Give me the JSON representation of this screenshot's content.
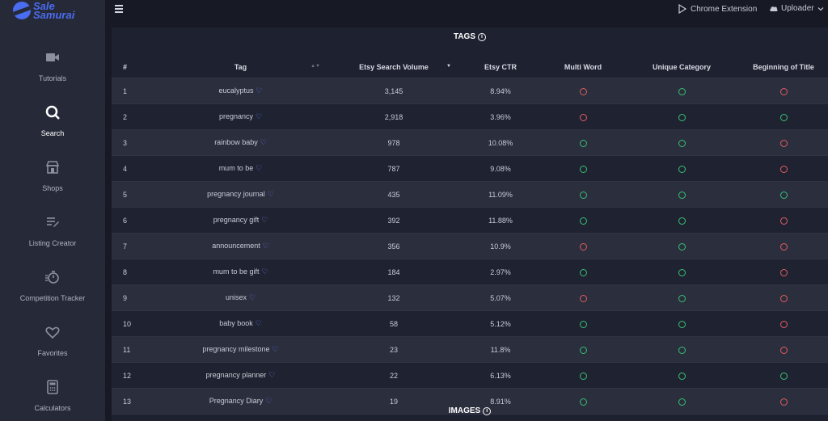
{
  "brand": {
    "line1": "Sale",
    "line2": "Samurai"
  },
  "nav": [
    {
      "label": "Tutorials",
      "icon": "video-camera-icon"
    },
    {
      "label": "Search",
      "icon": "search-icon",
      "active": true
    },
    {
      "label": "Shops",
      "icon": "store-icon"
    },
    {
      "label": "Listing Creator",
      "icon": "list-edit-icon"
    },
    {
      "label": "Competition Tracker",
      "icon": "stopwatch-icon"
    },
    {
      "label": "Favorites",
      "icon": "heart-icon"
    },
    {
      "label": "Calculators",
      "icon": "calculator-icon"
    }
  ],
  "topbar": {
    "extension": "Chrome Extension",
    "uploader": "Uploader"
  },
  "tags_section": {
    "title": "TAGS"
  },
  "images_section": {
    "title": "IMAGES"
  },
  "table": {
    "headers": [
      "#",
      "Tag",
      "Etsy Search Volume",
      "Etsy CTR",
      "Multi Word",
      "Unique Category",
      "Beginning of Title"
    ],
    "rows": [
      {
        "n": "1",
        "tag": "eucalyptus",
        "vol": "3,145",
        "ctr": "8.94%",
        "multi": "bad",
        "unique": "ok",
        "begin": "bad"
      },
      {
        "n": "2",
        "tag": "pregnancy",
        "vol": "2,918",
        "ctr": "3.96%",
        "multi": "bad",
        "unique": "ok",
        "begin": "ok"
      },
      {
        "n": "3",
        "tag": "rainbow baby",
        "vol": "978",
        "ctr": "10.08%",
        "multi": "ok",
        "unique": "ok",
        "begin": "bad"
      },
      {
        "n": "4",
        "tag": "mum to be",
        "vol": "787",
        "ctr": "9.08%",
        "multi": "ok",
        "unique": "ok",
        "begin": "bad"
      },
      {
        "n": "5",
        "tag": "pregnancy journal",
        "vol": "435",
        "ctr": "11.09%",
        "multi": "ok",
        "unique": "ok",
        "begin": "ok"
      },
      {
        "n": "6",
        "tag": "pregnancy gift",
        "vol": "392",
        "ctr": "11.88%",
        "multi": "ok",
        "unique": "ok",
        "begin": "bad"
      },
      {
        "n": "7",
        "tag": "announcement",
        "vol": "356",
        "ctr": "10.9%",
        "multi": "bad",
        "unique": "ok",
        "begin": "bad"
      },
      {
        "n": "8",
        "tag": "mum to be gift",
        "vol": "184",
        "ctr": "2.97%",
        "multi": "ok",
        "unique": "ok",
        "begin": "bad"
      },
      {
        "n": "9",
        "tag": "unisex",
        "vol": "132",
        "ctr": "5.07%",
        "multi": "bad",
        "unique": "ok",
        "begin": "bad"
      },
      {
        "n": "10",
        "tag": "baby book",
        "vol": "58",
        "ctr": "5.12%",
        "multi": "ok",
        "unique": "ok",
        "begin": "bad"
      },
      {
        "n": "11",
        "tag": "pregnancy milestone",
        "vol": "23",
        "ctr": "11.8%",
        "multi": "ok",
        "unique": "ok",
        "begin": "bad"
      },
      {
        "n": "12",
        "tag": "pregnancy planner",
        "vol": "22",
        "ctr": "6.13%",
        "multi": "ok",
        "unique": "ok",
        "begin": "ok"
      },
      {
        "n": "13",
        "tag": "Pregnancy Diary",
        "vol": "19",
        "ctr": "8.91%",
        "multi": "ok",
        "unique": "ok",
        "begin": "bad"
      }
    ]
  },
  "colors": {
    "ok": "#38c172",
    "bad": "#e35d5d",
    "accent": "#4a6cf0"
  }
}
